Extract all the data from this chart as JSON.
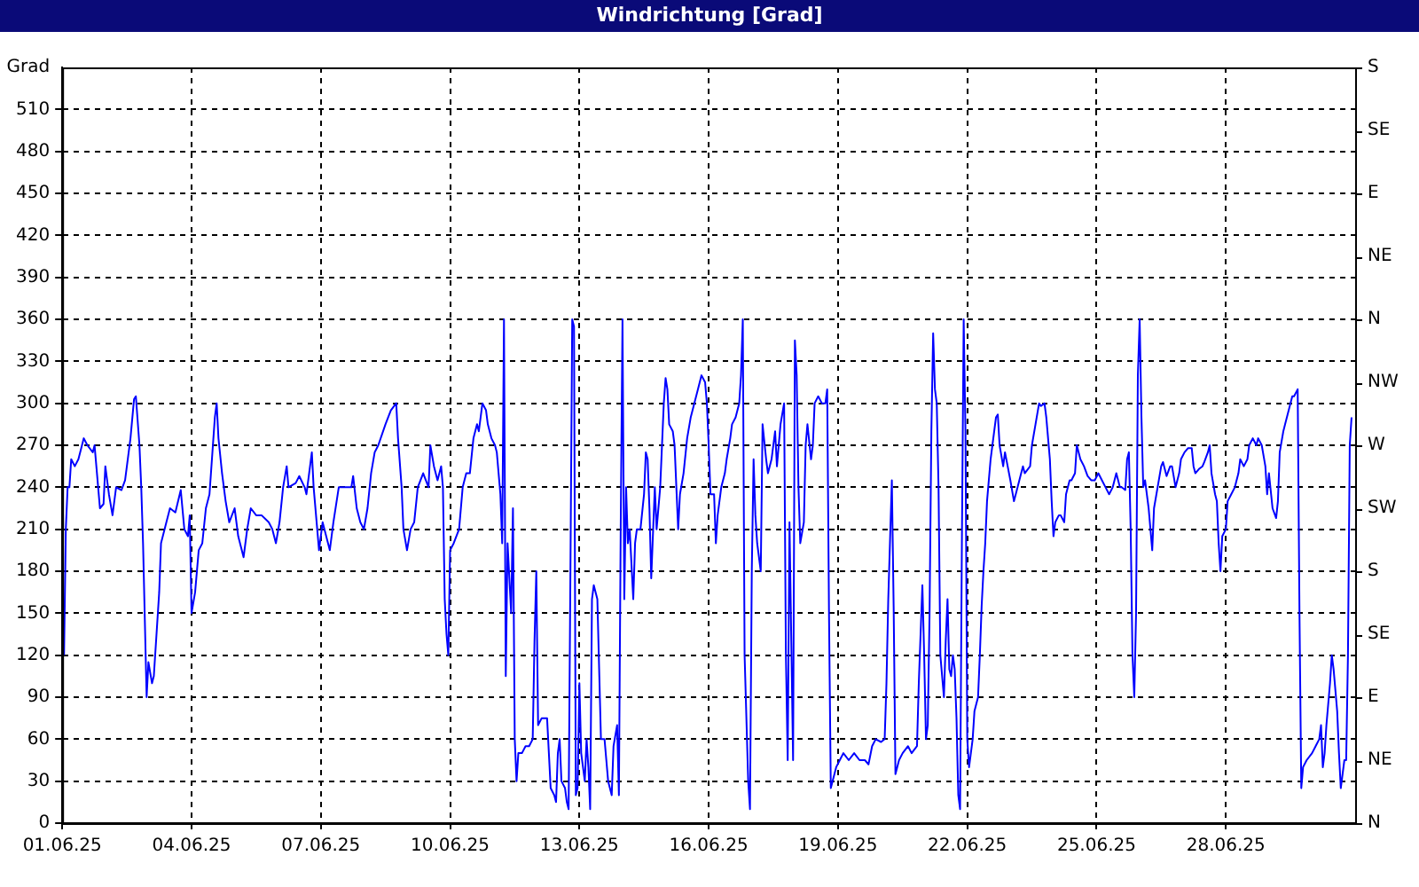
{
  "chart_data": {
    "type": "line",
    "title": "Windrichtung [Grad]",
    "ylabel": "Grad",
    "xlim": [
      "--06-01T00:00",
      "--07-01T00:00"
    ],
    "xticks": [
      {
        "value": "--06-01",
        "label": "01.06.25"
      },
      {
        "value": "--06-04",
        "label": "04.06.25"
      },
      {
        "value": "--06-07",
        "label": "07.06.25"
      },
      {
        "value": "--06-10",
        "label": "10.06.25"
      },
      {
        "value": "--06-13",
        "label": "13.06.25"
      },
      {
        "value": "--06-16",
        "label": "16.06.25"
      },
      {
        "value": "--06-19",
        "label": "19.06.25"
      },
      {
        "value": "--06-22",
        "label": "22.06.25"
      },
      {
        "value": "--06-25",
        "label": "25.06.25"
      },
      {
        "value": "--06-28",
        "label": "28.06.25"
      }
    ],
    "ylim": [
      0,
      540
    ],
    "yticks": [
      0,
      30,
      60,
      90,
      120,
      150,
      180,
      210,
      240,
      270,
      300,
      330,
      360,
      390,
      420,
      450,
      480,
      510
    ],
    "annotations": [
      "N",
      "NE",
      "E",
      "SE",
      "S",
      "SW",
      "W",
      "NW",
      "N",
      "NE",
      "E",
      "SE",
      "S"
    ],
    "grid": true,
    "legend": false,
    "marker": "none",
    "line_style": "solid",
    "series": [
      {
        "color": "#0000ff",
        "x": [
          "--06-01T01:00",
          "--06-01T02:00",
          "--06-01T03:00",
          "--06-01T04:00",
          "--06-01T05:00",
          "--06-01T07:00",
          "--06-01T09:00",
          "--06-01T12:00",
          "--06-01T14:00",
          "--06-01T17:00",
          "--06-01T18:00",
          "--06-01T20:00",
          "--06-01T21:00",
          "--06-01T23:00",
          "--06-02T00:00",
          "--06-02T02:00",
          "--06-02T04:00",
          "--06-02T06:00",
          "--06-02T09:00",
          "--06-02T11:00",
          "--06-02T14:00",
          "--06-02T16:00",
          "--06-02T17:00",
          "--06-02T19:00",
          "--06-02T20:00",
          "--06-02T21:00",
          "--06-02T23:00",
          "--06-03T00:00",
          "--06-03T02:00",
          "--06-03T03:00",
          "--06-03T06:00",
          "--06-03T07:00",
          "--06-03T10:00",
          "--06-03T12:00",
          "--06-03T15:00",
          "--06-03T18:00",
          "--06-03T20:00",
          "--06-03T22:00",
          "--06-03T23:00",
          "--06-04T00:00",
          "--06-04T02:00",
          "--06-04T04:00",
          "--06-04T06:00",
          "--06-04T08:00",
          "--06-04T10:00",
          "--06-04T13:00",
          "--06-04T14:00",
          "--06-04T15:00",
          "--06-04T17:00",
          "--06-04T19:00",
          "--06-04T21:00",
          "--06-05T00:00",
          "--06-05T02:00",
          "--06-05T05:00",
          "--06-05T07:00",
          "--06-05T09:00",
          "--06-05T12:00",
          "--06-05T15:00",
          "--06-05T19:00",
          "--06-05T21:00",
          "--06-05T23:00",
          "--06-06T01:00",
          "--06-06T03:00",
          "--06-06T05:00",
          "--06-06T06:00",
          "--06-06T10:00",
          "--06-06T12:00",
          "--06-06T15:00",
          "--06-06T16:00",
          "--06-06T19:00",
          "--06-06T20:00",
          "--06-06T22:00",
          "--06-06T23:00",
          "--06-07T01:00",
          "--06-07T03:00",
          "--06-07T05:00",
          "--06-07T07:00",
          "--06-07T10:00",
          "--06-07T14:00",
          "--06-07T17:00",
          "--06-07T18:00",
          "--06-07T20:00",
          "--06-07T22:00",
          "--06-08T00:00",
          "--06-08T02:00",
          "--06-08T04:00",
          "--06-08T06:00",
          "--06-08T08:00",
          "--06-08T12:00",
          "--06-08T15:00",
          "--06-08T18:00",
          "--06-08T19:00",
          "--06-08T21:00",
          "--06-08T22:00",
          "--06-09T00:00",
          "--06-09T02:00",
          "--06-09T04:00",
          "--06-09T06:00",
          "--06-09T09:00",
          "--06-09T12:00",
          "--06-09T13:00",
          "--06-09T15:00",
          "--06-09T17:00",
          "--06-09T19:00",
          "--06-09T20:00",
          "--06-09T21:00",
          "--06-09T22:00",
          "--06-09T23:00",
          "--06-10T00:00",
          "--06-10T02:00",
          "--06-10T05:00",
          "--06-10T07:00",
          "--06-10T09:00",
          "--06-10T11:00",
          "--06-10T13:00",
          "--06-10T15:00",
          "--06-10T16:00",
          "--06-10T18:00",
          "--06-10T20:00",
          "--06-10T21:00",
          "--06-10T23:00",
          "--06-11T01:00",
          "--06-11T02:00",
          "--06-11T04:00",
          "--06-11T05:00",
          "--06-11T06:00",
          "--06-11T07:00",
          "--06-11T08:00",
          "--06-11T09:00",
          "--06-11T10:00",
          "--06-11T11:00",
          "--06-11T12:00",
          "--06-11T13:00",
          "--06-11T14:00",
          "--06-11T16:00",
          "--06-11T18:00",
          "--06-11T20:00",
          "--06-11T22:00",
          "--06-11T23:00",
          "--06-12T00:00",
          "--06-12T01:00",
          "--06-12T03:00",
          "--06-12T06:00",
          "--06-12T07:00",
          "--06-12T08:00",
          "--06-12T10:00",
          "--06-12T11:00",
          "--06-12T12:00",
          "--06-12T13:00",
          "--06-12T14:00",
          "--06-12T16:00",
          "--06-12T17:00",
          "--06-12T18:00",
          "--06-12T19:00",
          "--06-12T20:00",
          "--06-12T21:00",
          "--06-12T22:00",
          "--06-12T23:00",
          "--06-13T00:00",
          "--06-13T01:00",
          "--06-13T03:00",
          "--06-13T04:00",
          "--06-13T05:00",
          "--06-13T06:00",
          "--06-13T07:00",
          "--06-13T08:00",
          "--06-13T10:00",
          "--06-13T11:00",
          "--06-13T12:00",
          "--06-13T14:00",
          "--06-13T15:00",
          "--06-13T16:00",
          "--06-13T18:00",
          "--06-13T19:00",
          "--06-13T21:00",
          "--06-13T22:00",
          "--06-13T23:00",
          "--06-14T00:00",
          "--06-14T01:00",
          "--06-14T02:00",
          "--06-14T03:00",
          "--06-14T04:00",
          "--06-14T06:00",
          "--06-14T07:00",
          "--06-14T08:00",
          "--06-14T10:00",
          "--06-14T12:00",
          "--06-14T13:00",
          "--06-14T14:00",
          "--06-14T15:00",
          "--06-14T16:00",
          "--06-14T18:00",
          "--06-14T19:00",
          "--06-14T21:00",
          "--06-14T23:00",
          "--06-15T00:00",
          "--06-15T01:00",
          "--06-15T02:00",
          "--06-15T04:00",
          "--06-15T05:00",
          "--06-15T06:00",
          "--06-15T07:00",
          "--06-15T08:00",
          "--06-15T10:00",
          "--06-15T12:00",
          "--06-15T14:00",
          "--06-15T16:00",
          "--06-15T18:00",
          "--06-15T20:00",
          "--06-15T22:00",
          "--06-15T23:00",
          "--06-16T00:00",
          "--06-16T01:00",
          "--06-16T03:00",
          "--06-16T04:00",
          "--06-16T05:00",
          "--06-16T07:00",
          "--06-16T09:00",
          "--06-16T10:00",
          "--06-16T12:00",
          "--06-16T13:00",
          "--06-16T15:00",
          "--06-16T17:00",
          "--06-16T18:00",
          "--06-16T19:00",
          "--06-16T20:00",
          "--06-16T22:00",
          "--06-16T23:00",
          "--06-17T00:00",
          "--06-17T01:00",
          "--06-17T02:00",
          "--06-17T03:00",
          "--06-17T05:00",
          "--06-17T06:00",
          "--06-17T08:00",
          "--06-17T09:00",
          "--06-17T11:00",
          "--06-17T13:00",
          "--06-17T14:00",
          "--06-17T16:00",
          "--06-17T18:00",
          "--06-17T19:00",
          "--06-17T20:00",
          "--06-17T21:00",
          "--06-17T22:00",
          "--06-17T23:00",
          "--06-18T00:00",
          "--06-18T01:00",
          "--06-18T02:00",
          "--06-18T03:00",
          "--06-18T05:00",
          "--06-18T06:00",
          "--06-18T07:00",
          "--06-18T09:00",
          "--06-18T10:00",
          "--06-18T11:00",
          "--06-18T13:00",
          "--06-18T15:00",
          "--06-18T17:00",
          "--06-18T18:00",
          "--06-18T19:00",
          "--06-18T20:00",
          "--06-18T21:00",
          "--06-18T23:00",
          "--06-19T01:00",
          "--06-19T03:00",
          "--06-19T06:00",
          "--06-19T09:00",
          "--06-19T12:00",
          "--06-19T15:00",
          "--06-19T17:00",
          "--06-19T19:00",
          "--06-19T21:00",
          "--06-20T00:00",
          "--06-20T02:00",
          "--06-20T03:00",
          "--06-20T04:00",
          "--06-20T06:00",
          "--06-20T07:00",
          "--06-20T08:00",
          "--06-20T10:00",
          "--06-20T12:00",
          "--06-20T15:00",
          "--06-20T17:00",
          "--06-20T20:00",
          "--06-20T21:00",
          "--06-20T23:00",
          "--06-21T00:00",
          "--06-21T01:00",
          "--06-21T02:00",
          "--06-21T03:00",
          "--06-21T04:00",
          "--06-21T05:00",
          "--06-21T06:00",
          "--06-21T07:00",
          "--06-21T08:00",
          "--06-21T09:00",
          "--06-21T11:00",
          "--06-21T12:00",
          "--06-21T13:00",
          "--06-21T14:00",
          "--06-21T15:00",
          "--06-21T16:00",
          "--06-21T17:00",
          "--06-21T18:00",
          "--06-21T19:00",
          "--06-21T20:00",
          "--06-21T21:00",
          "--06-21T22:00",
          "--06-21T23:00",
          "--06-22T00:00",
          "--06-22T01:00",
          "--06-22T03:00",
          "--06-22T04:00",
          "--06-22T06:00",
          "--06-22T07:00",
          "--06-22T08:00",
          "--06-22T09:00",
          "--06-22T10:00",
          "--06-22T11:00",
          "--06-22T12:00",
          "--06-22T13:00",
          "--06-22T14:00",
          "--06-22T16:00",
          "--06-22T17:00",
          "--06-22T18:00",
          "--06-22T20:00",
          "--06-22T21:00",
          "--06-23T00:00",
          "--06-23T02:00",
          "--06-23T03:00",
          "--06-23T05:00",
          "--06-23T07:00",
          "--06-23T08:00",
          "--06-23T11:00",
          "--06-23T12:00",
          "--06-23T14:00",
          "--06-23T16:00",
          "--06-23T17:00",
          "--06-23T19:00",
          "--06-23T20:00",
          "--06-23T22:00",
          "--06-23T23:00",
          "--06-24T00:00",
          "--06-24T01:00",
          "--06-24T03:00",
          "--06-24T04:00",
          "--06-24T06:00",
          "--06-24T07:00",
          "--06-24T09:00",
          "--06-24T10:00",
          "--06-24T12:00",
          "--06-24T13:00",
          "--06-24T15:00",
          "--06-24T17:00",
          "--06-24T19:00",
          "--06-24T21:00",
          "--06-24T23:00",
          "--06-25T01:00",
          "--06-25T03:00",
          "--06-25T05:00",
          "--06-25T07:00",
          "--06-25T09:00",
          "--06-25T11:00",
          "--06-25T13:00",
          "--06-25T14:00",
          "--06-25T16:00",
          "--06-25T17:00",
          "--06-25T18:00",
          "--06-25T19:00",
          "--06-25T20:00",
          "--06-25T21:00",
          "--06-25T22:00",
          "--06-25T23:00",
          "--06-26T00:00",
          "--06-26T01:00",
          "--06-26T02:00",
          "--06-26T03:00",
          "--06-26T05:00",
          "--06-26T07:00",
          "--06-26T08:00",
          "--06-26T10:00",
          "--06-26T12:00",
          "--06-26T13:00",
          "--06-26T15:00",
          "--06-26T17:00",
          "--06-26T18:00",
          "--06-26T20:00",
          "--06-26T22:00",
          "--06-26T23:00",
          "--06-27T01:00",
          "--06-27T03:00",
          "--06-27T05:00",
          "--06-27T06:00",
          "--06-27T07:00",
          "--06-27T09:00",
          "--06-27T11:00",
          "--06-27T12:00",
          "--06-27T14:00",
          "--06-27T15:00",
          "--06-27T16:00",
          "--06-27T18:00",
          "--06-27T19:00",
          "--06-27T20:00",
          "--06-27T21:00",
          "--06-27T22:00",
          "--06-28T00:00",
          "--06-28T01:00",
          "--06-28T03:00",
          "--06-28T05:00",
          "--06-28T07:00",
          "--06-28T08:00",
          "--06-28T10:00",
          "--06-28T12:00",
          "--06-28T13:00",
          "--06-28T15:00",
          "--06-28T17:00",
          "--06-28T18:00",
          "--06-28T20:00",
          "--06-28T22:00",
          "--06-28T23:00",
          "--06-29T00:00",
          "--06-29T02:00",
          "--06-29T04:00",
          "--06-29T05:00",
          "--06-29T06:00",
          "--06-29T08:00",
          "--06-29T09:00",
          "--06-29T11:00",
          "--06-29T13:00",
          "--06-29T14:00",
          "--06-29T16:00",
          "--06-29T17:00",
          "--06-29T18:00",
          "--06-29T19:00",
          "--06-29T21:00",
          "--06-30T00:00",
          "--06-30T02:00",
          "--06-30T04:00",
          "--06-30T05:00",
          "--06-30T06:00",
          "--06-30T07:00",
          "--06-30T08:00",
          "--06-30T10:00",
          "--06-30T11:00",
          "--06-30T12:00",
          "--06-30T14:00",
          "--06-30T15:00",
          "--06-30T16:00",
          "--06-30T18:00",
          "--06-30T19:00",
          "--06-30T20:00",
          "--06-30T21:00",
          "--06-30T22:00"
        ],
        "values": [
          120,
          210,
          240,
          240,
          260,
          255,
          260,
          275,
          270,
          265,
          270,
          240,
          225,
          228,
          255,
          235,
          220,
          240,
          238,
          245,
          275,
          303,
          305,
          270,
          240,
          200,
          90,
          115,
          100,
          105,
          165,
          200,
          215,
          225,
          222,
          238,
          210,
          205,
          220,
          150,
          165,
          195,
          200,
          225,
          235,
          290,
          300,
          275,
          250,
          230,
          215,
          225,
          205,
          190,
          210,
          225,
          220,
          220,
          215,
          210,
          200,
          215,
          240,
          255,
          240,
          243,
          248,
          240,
          235,
          265,
          240,
          210,
          195,
          215,
          205,
          195,
          215,
          240,
          240,
          240,
          248,
          225,
          215,
          210,
          225,
          250,
          265,
          270,
          285,
          295,
          300,
          275,
          240,
          210,
          195,
          210,
          215,
          240,
          250,
          240,
          270,
          255,
          245,
          255,
          240,
          160,
          135,
          120,
          195,
          200,
          210,
          240,
          250,
          250,
          275,
          285,
          280,
          300,
          295,
          285,
          275,
          270,
          265,
          235,
          200,
          360,
          105,
          200,
          175,
          150,
          225,
          60,
          30,
          50,
          50,
          55,
          55,
          60,
          130,
          180,
          70,
          75,
          75,
          50,
          25,
          20,
          15,
          50,
          60,
          30,
          25,
          15,
          10,
          180,
          360,
          355,
          20,
          25,
          100,
          50,
          30,
          60,
          40,
          10,
          160,
          170,
          160,
          110,
          60,
          60,
          45,
          30,
          20,
          55,
          70,
          20,
          210,
          360,
          160,
          240,
          200,
          210,
          160,
          200,
          210,
          210,
          235,
          265,
          260,
          225,
          175,
          240,
          210,
          240,
          300,
          318,
          310,
          285,
          280,
          270,
          240,
          210,
          235,
          250,
          275,
          290,
          300,
          310,
          320,
          315,
          300,
          270,
          235,
          235,
          200,
          220,
          240,
          250,
          260,
          275,
          285,
          290,
          300,
          320,
          360,
          120,
          30,
          10,
          180,
          260,
          220,
          200,
          180,
          285,
          260,
          250,
          260,
          280,
          255,
          285,
          300,
          120,
          45,
          215,
          130,
          45,
          345,
          320,
          240,
          200,
          215,
          270,
          285,
          260,
          270,
          300,
          305,
          300,
          300,
          310,
          150,
          25,
          30,
          40,
          45,
          50,
          45,
          50,
          45,
          45,
          42,
          55,
          60,
          58,
          60,
          100,
          160,
          245,
          155,
          35,
          45,
          50,
          55,
          50,
          55,
          100,
          170,
          120,
          60,
          70,
          150,
          280,
          350,
          310,
          300,
          240,
          120,
          90,
          130,
          160,
          110,
          105,
          120,
          110,
          75,
          20,
          10,
          200,
          360,
          280,
          60,
          40,
          60,
          80,
          90,
          120,
          155,
          180,
          200,
          230,
          245,
          260,
          270,
          290,
          292,
          270,
          255,
          265,
          245,
          230,
          235,
          245,
          255,
          250,
          255,
          270,
          285,
          300,
          298,
          300,
          290,
          260,
          230,
          205,
          215,
          220,
          220,
          215,
          235,
          245,
          245,
          250,
          270,
          260,
          255,
          248,
          245,
          245,
          250,
          245,
          240,
          235,
          240,
          250,
          240,
          240,
          238,
          260,
          265,
          210,
          120,
          90,
          150,
          320,
          360,
          290,
          240,
          245,
          225,
          195,
          225,
          240,
          255,
          258,
          248,
          255,
          255,
          240,
          250,
          260,
          265,
          268,
          268,
          255,
          250,
          253,
          255,
          258,
          265,
          270,
          250,
          235,
          230,
          200,
          180,
          205,
          210,
          230,
          235,
          240,
          250,
          260,
          255,
          260,
          270,
          275,
          270,
          275,
          270,
          255,
          235,
          250,
          225,
          218,
          230,
          265,
          280,
          285,
          295,
          305,
          305,
          310,
          150,
          25,
          40,
          45,
          50,
          55,
          60,
          70,
          40,
          50,
          70,
          100,
          120,
          110,
          80,
          50,
          25,
          45,
          45,
          120,
          270,
          290
        ]
      }
    ]
  }
}
